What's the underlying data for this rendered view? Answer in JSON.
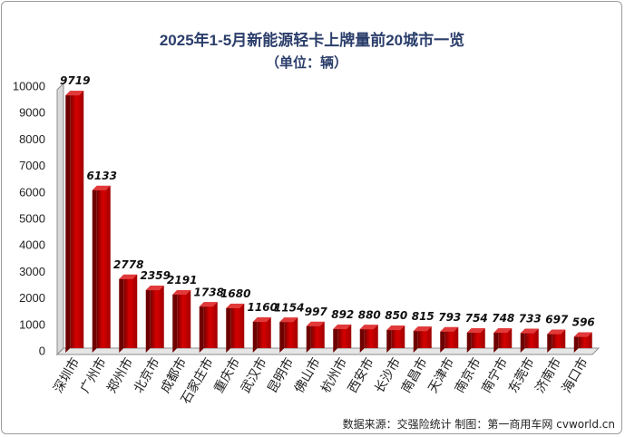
{
  "chart_data": {
    "type": "bar",
    "title": "2025年1-5月新能源轻卡上牌量前20城市一览",
    "subtitle": "（单位：辆）",
    "categories": [
      "深圳市",
      "广州市",
      "郑州市",
      "北京市",
      "成都市",
      "石家庄市",
      "重庆市",
      "武汉市",
      "昆明市",
      "佛山市",
      "杭州市",
      "西安市",
      "长沙市",
      "南昌市",
      "天津市",
      "南京市",
      "南宁市",
      "东莞市",
      "济南市",
      "海口市"
    ],
    "values": [
      9719,
      6133,
      2778,
      2359,
      2191,
      1738,
      1680,
      1160,
      1154,
      997,
      892,
      880,
      850,
      815,
      793,
      754,
      748,
      733,
      697,
      596
    ],
    "ylim": [
      0,
      10000
    ],
    "yticks": [
      0,
      1000,
      2000,
      3000,
      4000,
      5000,
      6000,
      7000,
      8000,
      9000,
      10000
    ],
    "bar_color": "#c00000",
    "grid": false,
    "source": "数据来源：交强险统计  制图：第一商用车网 cvworld.cn"
  }
}
